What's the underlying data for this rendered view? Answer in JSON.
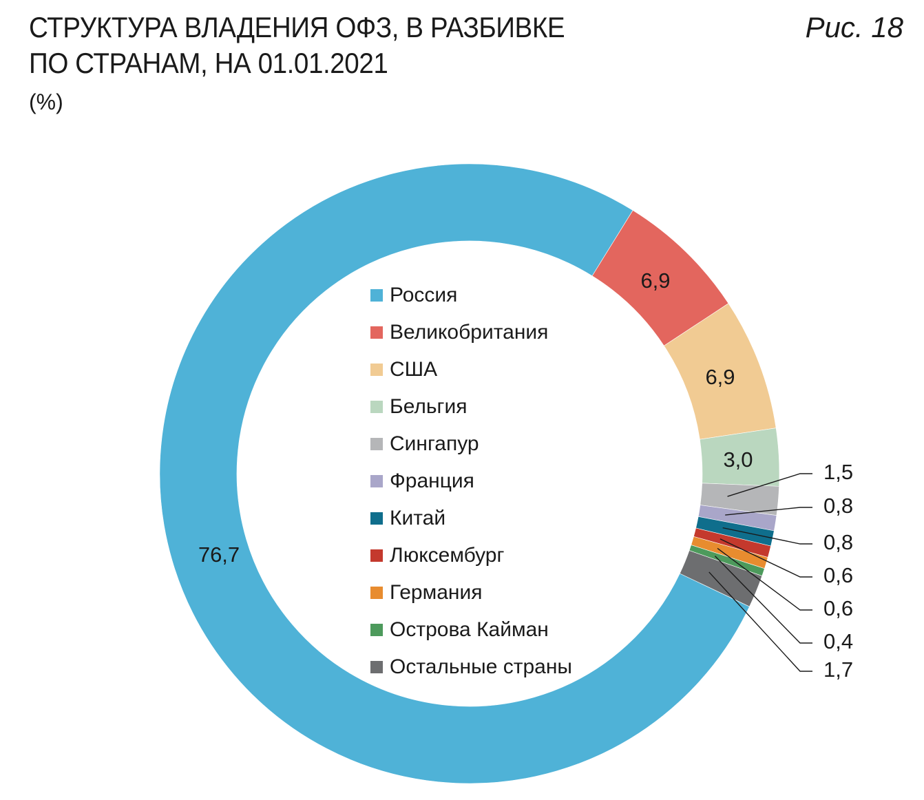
{
  "header": {
    "title_line1": "СТРУКТУРА ВЛАДЕНИЯ ОФЗ, В РАЗБИВКЕ",
    "title_line2": "ПО СТРАНАМ, НА 01.01.2021",
    "unit": "(%)",
    "figure_number": "Рис. 18"
  },
  "chart_data": {
    "type": "pie",
    "title": "СТРУКТУРА ВЛАДЕНИЯ ОФЗ, В РАЗБИВКЕ ПО СТРАНАМ, НА 01.01.2021",
    "unit": "%",
    "donut": true,
    "legend_position": "center",
    "slices": [
      {
        "name": "Россия",
        "value": 76.7,
        "label": "76,7",
        "color": "#4fb2d7"
      },
      {
        "name": "Великобритания",
        "value": 6.9,
        "label": "6,9",
        "color": "#e3665e"
      },
      {
        "name": "США",
        "value": 6.9,
        "label": "6,9",
        "color": "#f1cb93"
      },
      {
        "name": "Бельгия",
        "value": 3.0,
        "label": "3,0",
        "color": "#bad7bf"
      },
      {
        "name": "Сингапур",
        "value": 1.5,
        "label": "1,5",
        "color": "#b5b6b8"
      },
      {
        "name": "Франция",
        "value": 0.8,
        "label": "0,8",
        "color": "#a9a6c9"
      },
      {
        "name": "Китай",
        "value": 0.8,
        "label": "0,8",
        "color": "#0f6e8c"
      },
      {
        "name": "Люксембург",
        "value": 0.6,
        "label": "0,6",
        "color": "#c4392d"
      },
      {
        "name": "Германия",
        "value": 0.6,
        "label": "0,6",
        "color": "#e88c2f"
      },
      {
        "name": "Острова Кайман",
        "value": 0.4,
        "label": "0,4",
        "color": "#4d9a5c"
      },
      {
        "name": "Остальные страны",
        "value": 1.7,
        "label": "1,7",
        "color": "#6d6e70"
      }
    ]
  }
}
